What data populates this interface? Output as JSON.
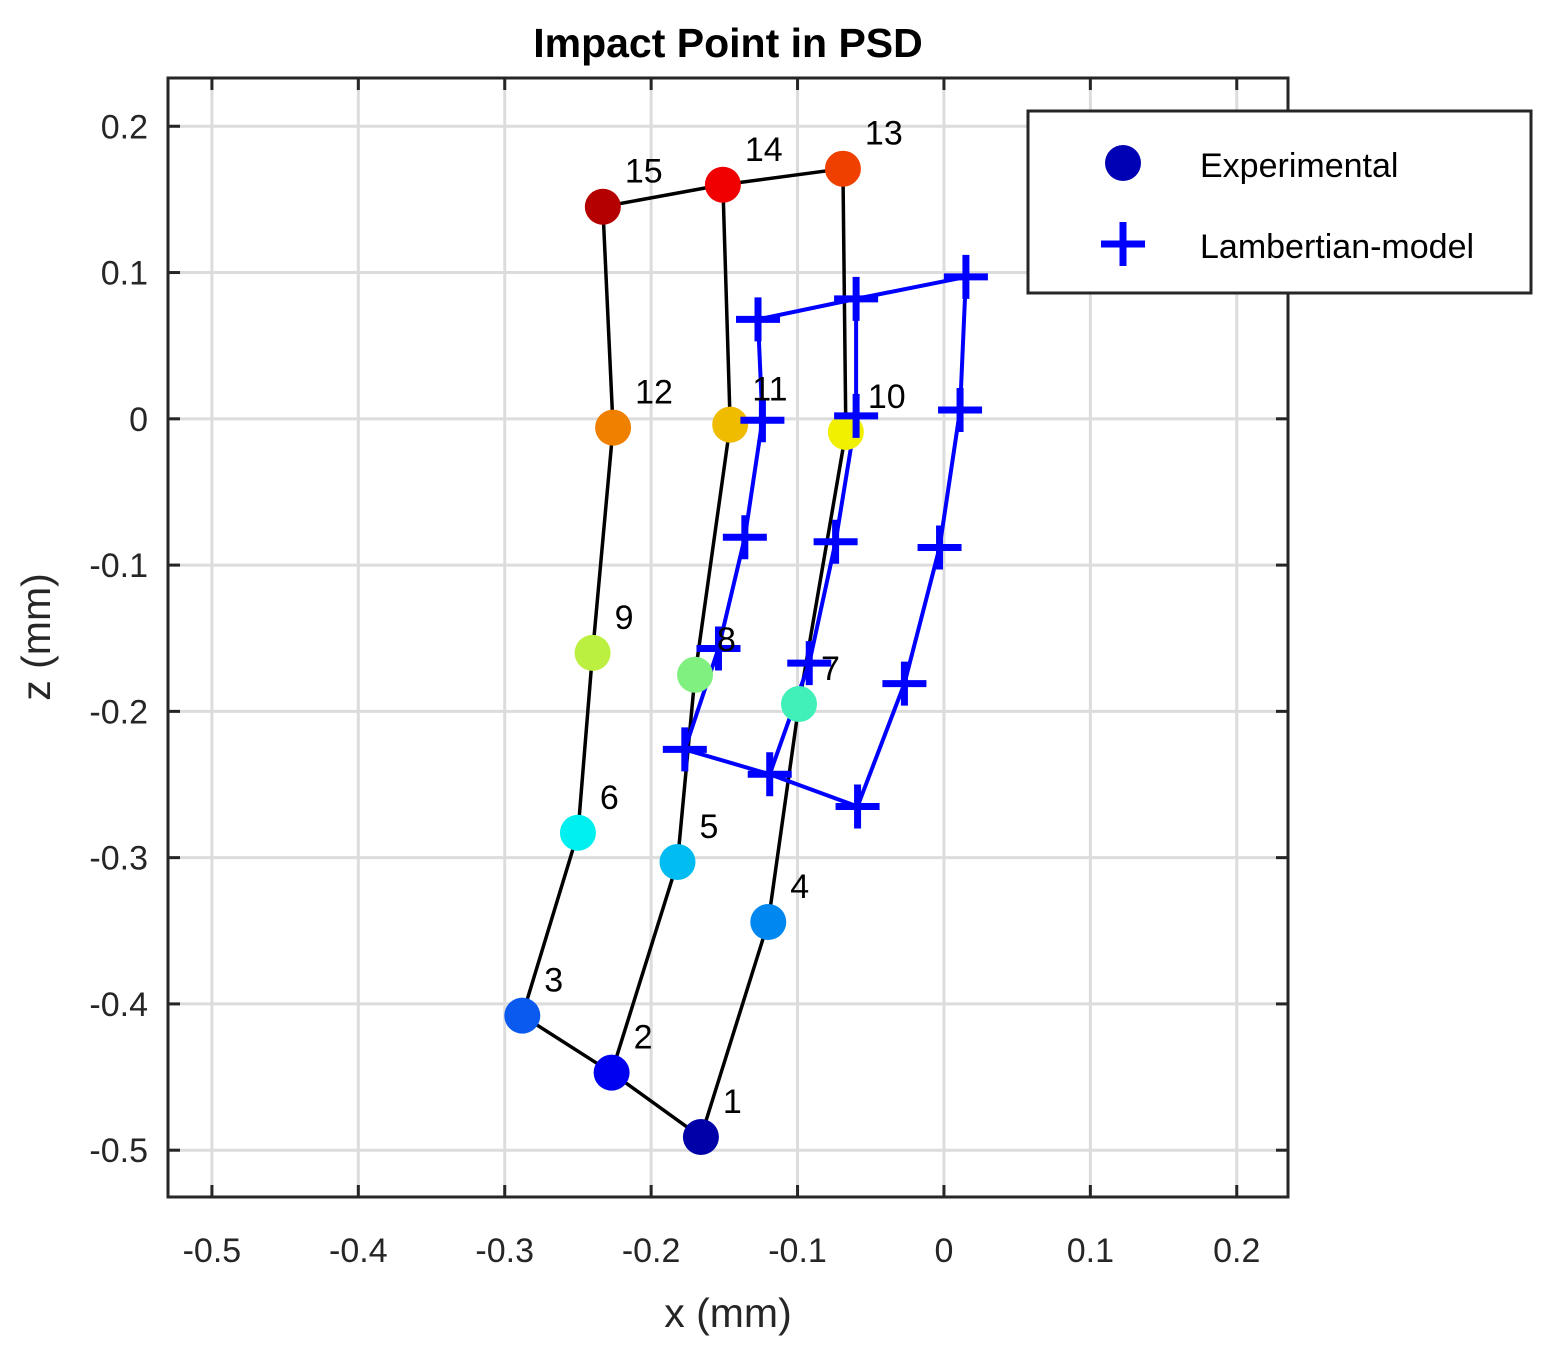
{
  "chart_data": {
    "type": "scatter",
    "title": "Impact Point in PSD",
    "xlabel": "x (mm)",
    "ylabel": "z (mm)",
    "xlim": [
      -0.53,
      0.235
    ],
    "ylim": [
      -0.532,
      0.233
    ],
    "xticks": [
      -0.5,
      -0.4,
      -0.3,
      -0.2,
      -0.1,
      0,
      0.1,
      0.2
    ],
    "xtick_labels": [
      "-0.5",
      "-0.4",
      "-0.3",
      "-0.2",
      "-0.1",
      "0",
      "0.1",
      "0.2"
    ],
    "yticks": [
      -0.5,
      -0.4,
      -0.3,
      -0.2,
      -0.1,
      0,
      0.1,
      0.2
    ],
    "ytick_labels": [
      "-0.5",
      "-0.4",
      "-0.3",
      "-0.2",
      "-0.1",
      "0",
      "0.1",
      "0.2"
    ],
    "grid": true,
    "legend_position": "top-right",
    "series": [
      {
        "name": "Experimental",
        "marker": "circle",
        "legend_color": "#0000b4",
        "line_color": "#000000",
        "points": [
          {
            "label": "1",
            "x": -0.166,
            "z": -0.491,
            "color": "#0000a8"
          },
          {
            "label": "2",
            "x": -0.227,
            "z": -0.447,
            "color": "#0000f0"
          },
          {
            "label": "3",
            "x": -0.288,
            "z": -0.408,
            "color": "#0a5af0"
          },
          {
            "label": "4",
            "x": -0.12,
            "z": -0.344,
            "color": "#0088f0"
          },
          {
            "label": "5",
            "x": -0.182,
            "z": -0.303,
            "color": "#00bcf0"
          },
          {
            "label": "6",
            "x": -0.25,
            "z": -0.283,
            "color": "#00f0f0"
          },
          {
            "label": "7",
            "x": -0.099,
            "z": -0.195,
            "color": "#40f0b8"
          },
          {
            "label": "8",
            "x": -0.17,
            "z": -0.175,
            "color": "#80f080"
          },
          {
            "label": "9",
            "x": -0.24,
            "z": -0.16,
            "color": "#bcf040"
          },
          {
            "label": "10",
            "x": -0.067,
            "z": -0.009,
            "color": "#f0f000"
          },
          {
            "label": "11",
            "x": -0.146,
            "z": -0.004,
            "color": "#f0bc00"
          },
          {
            "label": "12",
            "x": -0.226,
            "z": -0.006,
            "color": "#f08000"
          },
          {
            "label": "13",
            "x": -0.069,
            "z": 0.171,
            "color": "#f04000"
          },
          {
            "label": "14",
            "x": -0.151,
            "z": 0.16,
            "color": "#f00000"
          },
          {
            "label": "15",
            "x": -0.233,
            "z": 0.145,
            "color": "#b40000"
          }
        ],
        "paths": [
          [
            "3",
            "6",
            "9",
            "12",
            "15",
            "14",
            "13",
            "10",
            "7",
            "4",
            "1",
            "2",
            "3"
          ],
          [
            "2",
            "5",
            "8",
            "11",
            "14"
          ]
        ]
      },
      {
        "name": "Lambertian-model",
        "marker": "plus",
        "color": "#0000ff",
        "points": [
          {
            "x": -0.059,
            "z": -0.265
          },
          {
            "x": -0.119,
            "z": -0.243
          },
          {
            "x": -0.177,
            "z": -0.226
          },
          {
            "x": -0.027,
            "z": -0.181
          },
          {
            "x": -0.092,
            "z": -0.167
          },
          {
            "x": -0.154,
            "z": -0.157
          },
          {
            "x": -0.003,
            "z": -0.088
          },
          {
            "x": -0.074,
            "z": -0.084
          },
          {
            "x": -0.136,
            "z": -0.081
          },
          {
            "x": 0.011,
            "z": 0.006
          },
          {
            "x": -0.06,
            "z": 0.002
          },
          {
            "x": -0.124,
            "z": -0.001
          },
          {
            "x": 0.015,
            "z": 0.097
          },
          {
            "x": -0.06,
            "z": 0.082
          },
          {
            "x": -0.127,
            "z": 0.068
          }
        ],
        "paths": [
          [
            0,
            3,
            6,
            9,
            12,
            13,
            14,
            11,
            8,
            5,
            2,
            1,
            0
          ],
          [
            1,
            4,
            7,
            10,
            13
          ]
        ]
      }
    ]
  }
}
